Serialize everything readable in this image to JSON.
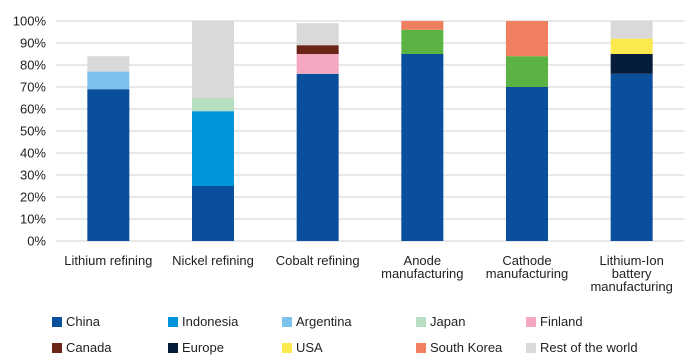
{
  "chart_data": {
    "type": "bar",
    "stacked": true,
    "percent": true,
    "categories": [
      [
        "Lithium refining"
      ],
      [
        "Nickel refining"
      ],
      [
        "Cobalt refining"
      ],
      [
        "Anode",
        "manufacturing"
      ],
      [
        "Cathode",
        "manufacturing"
      ],
      [
        "Lithium-Ion",
        "battery",
        "manufacturing"
      ]
    ],
    "y_ticks": [
      "0%",
      "10%",
      "20%",
      "30%",
      "40%",
      "50%",
      "60%",
      "70%",
      "80%",
      "90%",
      "100%"
    ],
    "ylim": [
      0,
      100
    ],
    "grid": true,
    "legend_position": "bottom",
    "series": [
      {
        "name": "China",
        "color": "#0a4f9c",
        "values": [
          69,
          25,
          76,
          85,
          70,
          76
        ]
      },
      {
        "name": "Indonesia",
        "color": "#0095da",
        "values": [
          0,
          34,
          0,
          0,
          0,
          0
        ]
      },
      {
        "name": "Argentina",
        "color": "#7cc2ec",
        "values": [
          8,
          0,
          0,
          0,
          0,
          0
        ]
      },
      {
        "name": "Japan",
        "color": "#b6dec1",
        "values": [
          0,
          6,
          0,
          0,
          0,
          0
        ]
      },
      {
        "name": "Finland",
        "color": "#f4a8c0",
        "values": [
          0,
          0,
          9,
          0,
          0,
          0
        ]
      },
      {
        "name": "Canada",
        "color": "#6b2416",
        "values": [
          0,
          0,
          4,
          0,
          0,
          0
        ]
      },
      {
        "name": "Europe",
        "color": "#061c3b",
        "values": [
          0,
          0,
          0,
          0,
          0,
          9
        ]
      },
      {
        "name": "USA",
        "color": "#fbe94e",
        "values": [
          0,
          0,
          0,
          0,
          0,
          7
        ]
      },
      {
        "name": "South Korea",
        "color": "#ef7f5e",
        "values": [
          0,
          0,
          0,
          4,
          16,
          0
        ]
      },
      {
        "name": "Rest of the world",
        "color": "#d9d9d9",
        "values": [
          7,
          35,
          10,
          0,
          0,
          8
        ]
      }
    ],
    "extra_series_colors": {
      "anode_green": "#5ab342"
    },
    "stack_overrides": [
      {
        "category_index": 3,
        "segments": [
          {
            "series": "China",
            "value": 85
          },
          {
            "series": "__green__",
            "value": 11,
            "color": "#5ab342"
          },
          {
            "series": "South Korea",
            "value": 4
          }
        ]
      },
      {
        "category_index": 4,
        "segments": [
          {
            "series": "China",
            "value": 70
          },
          {
            "series": "__green__",
            "value": 14,
            "color": "#5ab342"
          },
          {
            "series": "South Korea",
            "value": 16
          }
        ]
      }
    ]
  }
}
